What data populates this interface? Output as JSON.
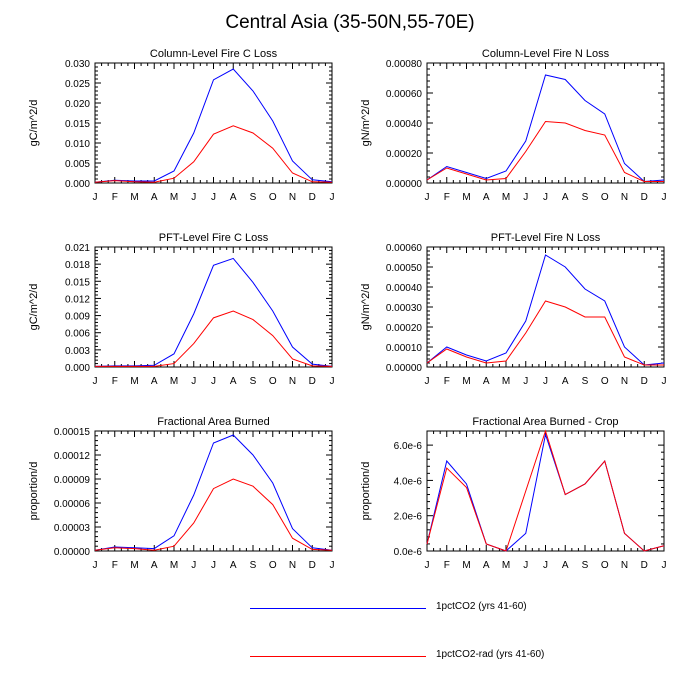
{
  "title": "Central Asia (35-50N,55-70E)",
  "colors": {
    "series0": "#0000ff",
    "series1": "#ff0000"
  },
  "legend": [
    {
      "label": "1pctCO2 (yrs 41-60)",
      "color": "#0000ff"
    },
    {
      "label": "1pctCO2-rad (yrs 41-60)",
      "color": "#ff0000"
    }
  ],
  "chart_data": [
    {
      "type": "line",
      "title": "Column-Level Fire C Loss",
      "ylabel": "gC/m^2/d",
      "xlabel": "",
      "categories": [
        "J",
        "F",
        "M",
        "A",
        "M",
        "J",
        "J",
        "A",
        "S",
        "O",
        "N",
        "D",
        "J"
      ],
      "ylim": [
        0,
        0.03
      ],
      "yticks": [
        "0.000",
        "0.005",
        "0.010",
        "0.015",
        "0.020",
        "0.025",
        "0.030"
      ],
      "series": [
        {
          "name": "1pctCO2 (yrs 41-60)",
          "values": [
            0.0002,
            0.0007,
            0.0005,
            0.0005,
            0.003,
            0.0125,
            0.0258,
            0.0285,
            0.023,
            0.0155,
            0.0055,
            0.0008,
            0.0003
          ]
        },
        {
          "name": "1pctCO2-rad (yrs 41-60)",
          "values": [
            0.0002,
            0.0006,
            0.0003,
            0.0002,
            0.0012,
            0.0053,
            0.0122,
            0.0143,
            0.0125,
            0.0087,
            0.0025,
            0.0003,
            0.0002
          ]
        }
      ]
    },
    {
      "type": "line",
      "title": "Column-Level Fire N Loss",
      "ylabel": "gN/m^2/d",
      "xlabel": "",
      "categories": [
        "J",
        "F",
        "M",
        "A",
        "M",
        "J",
        "J",
        "A",
        "S",
        "O",
        "N",
        "D",
        "J"
      ],
      "ylim": [
        0,
        0.0008
      ],
      "yticks": [
        "0.00000",
        "0.00020",
        "0.00040",
        "0.00060",
        "0.00080"
      ],
      "series": [
        {
          "name": "1pctCO2 (yrs 41-60)",
          "values": [
            2e-05,
            0.00011,
            7e-05,
            3e-05,
            8e-05,
            0.00028,
            0.00072,
            0.00069,
            0.00055,
            0.00046,
            0.00013,
            1e-05,
            2e-05
          ]
        },
        {
          "name": "1pctCO2-rad (yrs 41-60)",
          "values": [
            2e-05,
            0.0001,
            6e-05,
            2e-05,
            3e-05,
            0.00021,
            0.00041,
            0.0004,
            0.00035,
            0.00032,
            7e-05,
            1e-05,
            1e-05
          ]
        }
      ]
    },
    {
      "type": "line",
      "title": "PFT-Level Fire C Loss",
      "ylabel": "gC/m^2/d",
      "xlabel": "",
      "categories": [
        "J",
        "F",
        "M",
        "A",
        "M",
        "J",
        "J",
        "A",
        "S",
        "O",
        "N",
        "D",
        "J"
      ],
      "ylim": [
        0,
        0.021
      ],
      "yticks": [
        "0.000",
        "0.003",
        "0.006",
        "0.009",
        "0.012",
        "0.015",
        "0.018",
        "0.021"
      ],
      "series": [
        {
          "name": "1pctCO2 (yrs 41-60)",
          "values": [
            0.0001,
            0.0002,
            0.0002,
            0.0003,
            0.0023,
            0.0093,
            0.0178,
            0.019,
            0.0148,
            0.0098,
            0.0035,
            0.0005,
            0.0001
          ]
        },
        {
          "name": "1pctCO2-rad (yrs 41-60)",
          "values": [
            0.0001,
            0.0001,
            0.0001,
            0.0001,
            0.0006,
            0.0041,
            0.0086,
            0.0098,
            0.0083,
            0.0055,
            0.0014,
            0.0002,
            0.0001
          ]
        }
      ]
    },
    {
      "type": "line",
      "title": "PFT-Level Fire N Loss",
      "ylabel": "gN/m^2/d",
      "xlabel": "",
      "categories": [
        "J",
        "F",
        "M",
        "A",
        "M",
        "J",
        "J",
        "A",
        "S",
        "O",
        "N",
        "D",
        "J"
      ],
      "ylim": [
        0,
        0.0006
      ],
      "yticks": [
        "0.00000",
        "0.00010",
        "0.00020",
        "0.00030",
        "0.00040",
        "0.00050",
        "0.00060"
      ],
      "series": [
        {
          "name": "1pctCO2 (yrs 41-60)",
          "values": [
            2e-05,
            0.0001,
            6e-05,
            3e-05,
            7e-05,
            0.00023,
            0.00056,
            0.0005,
            0.00039,
            0.00033,
            0.0001,
            1e-05,
            2e-05
          ]
        },
        {
          "name": "1pctCO2-rad (yrs 41-60)",
          "values": [
            2e-05,
            9e-05,
            5e-05,
            2e-05,
            3e-05,
            0.00017,
            0.00033,
            0.0003,
            0.00025,
            0.00025,
            5e-05,
            1e-05,
            1e-05
          ]
        }
      ]
    },
    {
      "type": "line",
      "title": "Fractional Area Burned",
      "ylabel": "proportion/d",
      "xlabel": "",
      "categories": [
        "J",
        "F",
        "M",
        "A",
        "M",
        "J",
        "J",
        "A",
        "S",
        "O",
        "N",
        "D",
        "J"
      ],
      "ylim": [
        0,
        0.00015
      ],
      "yticks": [
        "0.00000",
        "0.00003",
        "0.00006",
        "0.00009",
        "0.00012",
        "0.00015"
      ],
      "series": [
        {
          "name": "1pctCO2 (yrs 41-60)",
          "values": [
            1e-06,
            5e-06,
            4e-06,
            3e-06,
            1.9e-05,
            7e-05,
            0.000135,
            0.000145,
            0.00012,
            8.5e-05,
            2.8e-05,
            4e-06,
            1e-06
          ]
        },
        {
          "name": "1pctCO2-rad (yrs 41-60)",
          "values": [
            1e-06,
            4e-06,
            3e-06,
            1e-06,
            6e-06,
            3.5e-05,
            7.8e-05,
            9e-05,
            8.1e-05,
            5.8e-05,
            1.6e-05,
            2e-06,
            1e-06
          ]
        }
      ]
    },
    {
      "type": "line",
      "title": "Fractional Area Burned - Crop",
      "ylabel": "proportion/d",
      "xlabel": "",
      "categories": [
        "J",
        "F",
        "M",
        "A",
        "M",
        "J",
        "J",
        "A",
        "S",
        "O",
        "N",
        "D",
        "J"
      ],
      "ylim": [
        0,
        6.8e-06
      ],
      "yticks": [
        "0.0e-6",
        "2.0e-6",
        "4.0e-6",
        "6.0e-6"
      ],
      "ytick_values": [
        0,
        2e-06,
        4e-06,
        6e-06
      ],
      "series": [
        {
          "name": "1pctCO2 (yrs 41-60)",
          "values": [
            4e-07,
            5.1e-06,
            3.8e-06,
            4e-07,
            0.0,
            1e-06,
            6.6e-06,
            3.2e-06,
            3.8e-06,
            5.1e-06,
            1e-06,
            0.0,
            3e-07
          ]
        },
        {
          "name": "1pctCO2-rad (yrs 41-60)",
          "values": [
            4e-07,
            4.7e-06,
            3.6e-06,
            4e-07,
            0.0,
            3.4e-06,
            6.8e-06,
            3.2e-06,
            3.8e-06,
            5.1e-06,
            1e-06,
            0.0,
            3e-07
          ]
        }
      ]
    }
  ]
}
